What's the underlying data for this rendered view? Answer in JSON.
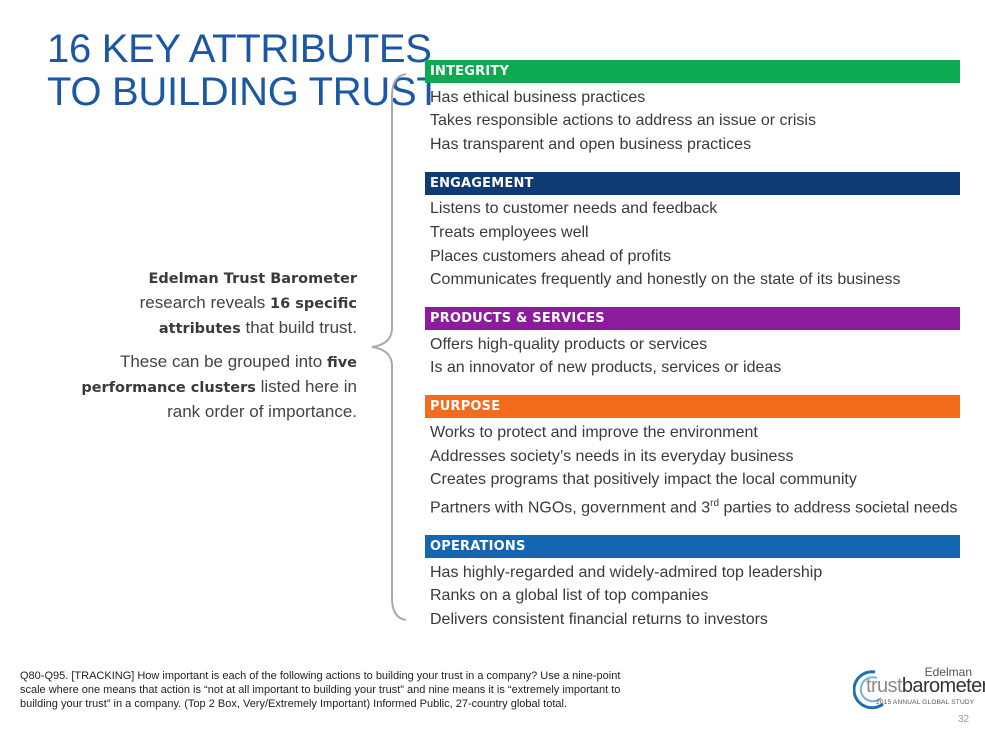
{
  "title": {
    "line1": "16 KEY ATTRIBUTES",
    "line2": "TO BUILDING TRUST"
  },
  "intro": {
    "p1_bold": "Edelman Trust Barometer",
    "p1_text": " research reveals ",
    "p1_bold2": "16 specific attributes",
    "p1_text2": " that build trust.",
    "p2_text": "These can be grouped into ",
    "p2_bold": "five performance clusters",
    "p2_text2": " listed here in rank order of importance."
  },
  "clusters": [
    {
      "name": "INTEGRITY",
      "color": "#0daa4f",
      "items": [
        "Has ethical business practices",
        "Takes responsible actions to address an issue or crisis",
        "Has transparent and open business practices"
      ]
    },
    {
      "name": "ENGAGEMENT",
      "color": "#0e3b72",
      "items": [
        "Listens to customer needs and feedback",
        "Treats employees well",
        "Places customers ahead of profits",
        "Communicates frequently and honestly on the state of its business"
      ]
    },
    {
      "name": "PRODUCTS & SERVICES",
      "color": "#8c1b9e",
      "items": [
        "Offers high-quality products or services",
        "Is an innovator of new products, services or ideas"
      ]
    },
    {
      "name": "PURPOSE",
      "color": "#f36b1c",
      "items": [
        "Works to protect and improve the environment",
        "Addresses society’s needs in its everyday business",
        "Creates programs that positively impact the local community"
      ],
      "special": {
        "pre": "Partners with NGOs, government and 3",
        "sup": "rd",
        "post": " parties to address societal needs"
      }
    },
    {
      "name": "OPERATIONS",
      "color": "#1565b0",
      "items": [
        "Has highly-regarded and widely-admired top leadership",
        "Ranks on a global list of top companies",
        "Delivers consistent financial returns to investors"
      ]
    }
  ],
  "footnote": "Q80-Q95. [TRACKING] How important is each of the following actions to building your trust in a company? Use a nine-point scale where one means that action is “not at all important to building your trust” and nine means it is “extremely important to building your trust” in a company. (Top 2 Box, Very/Extremely Important) Informed Public, 27-country global total.",
  "logo": {
    "brand": "Edelman",
    "word_a": "trust",
    "word_b": "barometer",
    "year": "2015",
    "tagline": "ANNUAL GLOBAL STUDY"
  },
  "page_number": "32"
}
